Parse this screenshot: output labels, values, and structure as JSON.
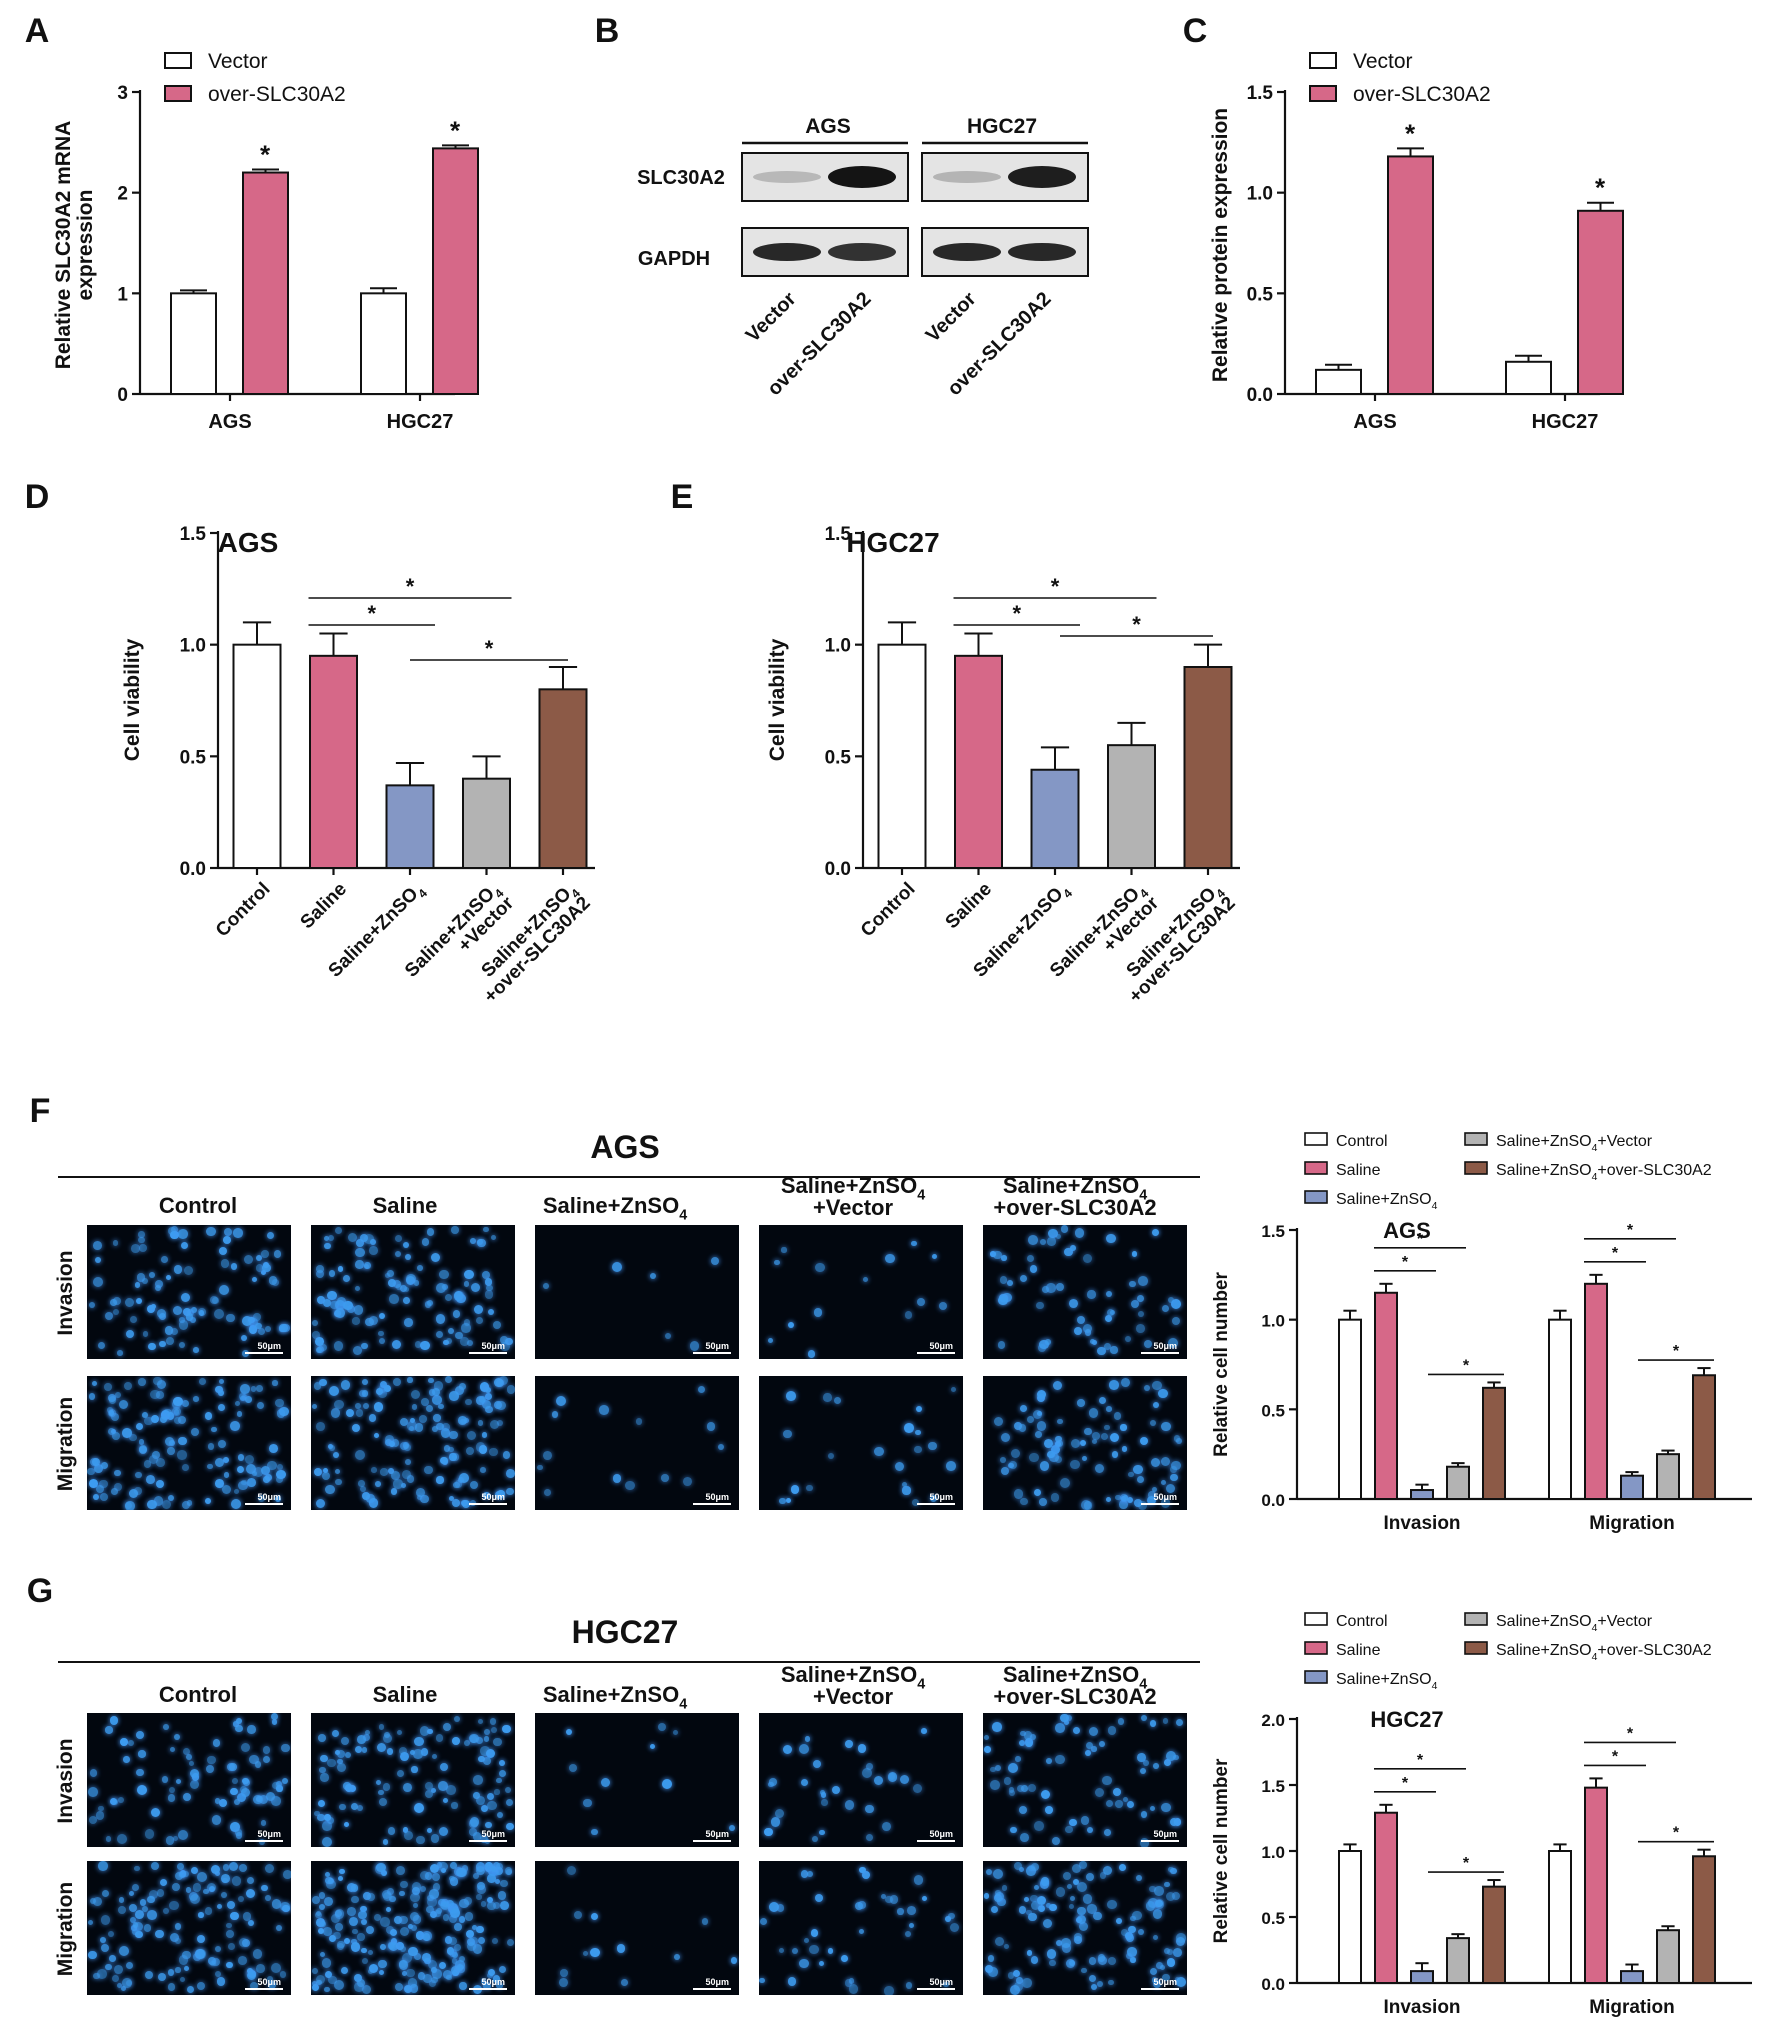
{
  "colors": {
    "vector": "#ffffff",
    "over": "#d66888",
    "control": "#ffffff",
    "saline": "#d66888",
    "znso4": "#8497c5",
    "znso4_vector": "#b3b3b3",
    "znso4_over": "#8c5a47",
    "nuclei": "#3d9cf0",
    "micro_bg": "#02070f"
  },
  "panels": {
    "A": {
      "letter": "A"
    },
    "B": {
      "letter": "B",
      "groups": [
        "AGS",
        "HGC27"
      ],
      "rows": [
        "SLC30A2",
        "GAPDH"
      ],
      "lanes": [
        "Vector",
        "over-SLC30A2",
        "Vector",
        "over-SLC30A2"
      ]
    },
    "C": {
      "letter": "C"
    },
    "D": {
      "letter": "D"
    },
    "E": {
      "letter": "E"
    },
    "F": {
      "letter": "F",
      "title": "AGS",
      "columns": [
        "Control",
        "Saline",
        "Saline+ZnSO₄",
        "Saline+ZnSO₄\n+Vector",
        "Saline+ZnSO₄\n+over-SLC30A2"
      ],
      "rows": [
        "Invasion",
        "Migration"
      ],
      "scale": "50μm"
    },
    "G": {
      "letter": "G",
      "title": "HGC27",
      "columns": [
        "Control",
        "Saline",
        "Saline+ZnSO₄",
        "Saline+ZnSO₄\n+Vector",
        "Saline+ZnSO₄\n+over-SLC30A2"
      ],
      "rows": [
        "Invasion",
        "Migration"
      ],
      "scale": "50μm"
    }
  },
  "chart_data": [
    {
      "id": "A",
      "type": "bar",
      "categories": [
        "AGS",
        "HGC27"
      ],
      "series": [
        {
          "name": "Vector",
          "values": [
            1.0,
            1.0
          ],
          "errors": [
            0.03,
            0.05
          ]
        },
        {
          "name": "over-SLC30A2",
          "values": [
            2.2,
            2.44
          ],
          "errors": [
            0.03,
            0.03
          ]
        }
      ],
      "ylabel": "Relative SLC30A2 mRNA\nexpression",
      "ylim": [
        0,
        3
      ],
      "yticks": [
        "0",
        "1",
        "2",
        "3"
      ],
      "significance": [
        "*",
        "*"
      ]
    },
    {
      "id": "C",
      "type": "bar",
      "categories": [
        "AGS",
        "HGC27"
      ],
      "series": [
        {
          "name": "Vector",
          "values": [
            0.12,
            0.16
          ],
          "errors": [
            0.025,
            0.03
          ]
        },
        {
          "name": "over-SLC30A2",
          "values": [
            1.18,
            0.91
          ],
          "errors": [
            0.04,
            0.04
          ]
        }
      ],
      "ylabel": "Relative protein expression",
      "ylim": [
        0,
        1.5
      ],
      "yticks": [
        "0.0",
        "0.5",
        "1.0",
        "1.5"
      ],
      "significance": [
        "*",
        "*"
      ]
    },
    {
      "id": "D",
      "type": "bar",
      "title": "AGS",
      "categories": [
        "Control",
        "Saline",
        "Saline+ZnSO₄",
        "Saline+ZnSO₄\n+Vector",
        "Saline+ZnSO₄\n+over-SLC30A2"
      ],
      "values": [
        1.0,
        0.95,
        0.37,
        0.4,
        0.8
      ],
      "errors": [
        0.1,
        0.1,
        0.1,
        0.1,
        0.1
      ],
      "ylabel": "Cell viability",
      "ylim": [
        0,
        1.5
      ],
      "yticks": [
        "0.0",
        "0.5",
        "1.0",
        "1.5"
      ],
      "significance": [
        "*",
        "*",
        "*"
      ]
    },
    {
      "id": "E",
      "type": "bar",
      "title": "HGC27",
      "categories": [
        "Control",
        "Saline",
        "Saline+ZnSO₄",
        "Saline+ZnSO₄\n+Vector",
        "Saline+ZnSO₄\n+over-SLC30A2"
      ],
      "values": [
        1.0,
        0.95,
        0.44,
        0.55,
        0.9
      ],
      "errors": [
        0.1,
        0.1,
        0.1,
        0.1,
        0.1
      ],
      "ylabel": "Cell viability",
      "ylim": [
        0,
        1.5
      ],
      "yticks": [
        "0.0",
        "0.5",
        "1.0",
        "1.5"
      ],
      "significance": [
        "*",
        "*",
        "*"
      ]
    },
    {
      "id": "F",
      "type": "bar",
      "title": "AGS",
      "categories": [
        "Invasion",
        "Migration"
      ],
      "series": [
        {
          "name": "Control",
          "values": [
            1.0,
            1.0
          ],
          "errors": [
            0.05,
            0.05
          ]
        },
        {
          "name": "Saline",
          "values": [
            1.15,
            1.2
          ],
          "errors": [
            0.05,
            0.05
          ]
        },
        {
          "name": "Saline+ZnSO₄",
          "values": [
            0.05,
            0.13
          ],
          "errors": [
            0.03,
            0.02
          ]
        },
        {
          "name": "Saline+ZnSO₄+Vector",
          "values": [
            0.18,
            0.25
          ],
          "errors": [
            0.02,
            0.02
          ]
        },
        {
          "name": "Saline+ZnSO₄+over-SLC30A2",
          "values": [
            0.62,
            0.69
          ],
          "errors": [
            0.03,
            0.04
          ]
        }
      ],
      "ylabel": "Relative cell number",
      "ylim": [
        0,
        1.5
      ],
      "yticks": [
        "0.0",
        "0.5",
        "1.0",
        "1.5"
      ],
      "significance": [
        "*",
        "*",
        "*",
        "*",
        "*",
        "*"
      ]
    },
    {
      "id": "G",
      "type": "bar",
      "title": "HGC27",
      "categories": [
        "Invasion",
        "Migration"
      ],
      "series": [
        {
          "name": "Control",
          "values": [
            1.0,
            1.0
          ],
          "errors": [
            0.05,
            0.05
          ]
        },
        {
          "name": "Saline",
          "values": [
            1.29,
            1.48
          ],
          "errors": [
            0.06,
            0.07
          ]
        },
        {
          "name": "Saline+ZnSO₄",
          "values": [
            0.09,
            0.09
          ],
          "errors": [
            0.06,
            0.05
          ]
        },
        {
          "name": "Saline+ZnSO₄+Vector",
          "values": [
            0.34,
            0.4
          ],
          "errors": [
            0.03,
            0.03
          ]
        },
        {
          "name": "Saline+ZnSO₄+over-SLC30A2",
          "values": [
            0.73,
            0.96
          ],
          "errors": [
            0.05,
            0.05
          ]
        }
      ],
      "ylabel": "Relative cell number",
      "ylim": [
        0,
        2.0
      ],
      "yticks": [
        "0.0",
        "0.5",
        "1.0",
        "1.5",
        "2.0"
      ],
      "significance": [
        "*",
        "*",
        "*",
        "*",
        "*",
        "*"
      ]
    }
  ]
}
